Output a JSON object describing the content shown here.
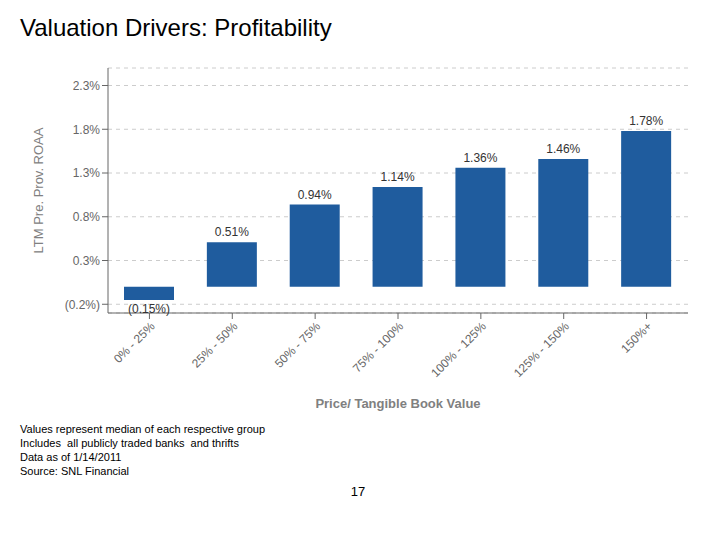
{
  "chart_data": {
    "type": "bar",
    "title": "Valuation Drivers: Profitability",
    "categories": [
      "0% - 25%",
      "25% - 50%",
      "50% - 75%",
      "75% - 100%",
      "100% - 125%",
      "125% - 150%",
      "150%+"
    ],
    "values": [
      -0.15,
      0.51,
      0.94,
      1.14,
      1.36,
      1.46,
      1.78
    ],
    "value_labels": [
      "(0.15%)",
      "0.51%",
      "0.94%",
      "1.14%",
      "1.36%",
      "1.46%",
      "1.78%"
    ],
    "color": "#1F5C9E",
    "xlabel": "Price/ Tangible Book Value",
    "ylabel": "LTM Pre. Prov. ROAA",
    "ylim": [
      -0.3,
      2.5
    ],
    "yticks": [
      {
        "value": -0.2,
        "label": "(0.2%)"
      },
      {
        "value": 0.3,
        "label": "0.3%"
      },
      {
        "value": 0.8,
        "label": "0.8%"
      },
      {
        "value": 1.3,
        "label": "1.3%"
      },
      {
        "value": 1.8,
        "label": "1.8%"
      },
      {
        "value": 2.3,
        "label": "2.3%"
      }
    ],
    "grid": true,
    "data_labels": true,
    "annotations": [
      "Values represent median of each respective group",
      "Includes  all publicly traded banks  and thrifts",
      "Data as of 1/14/2011",
      "Source: SNL Financial"
    ],
    "page_number": "17"
  }
}
